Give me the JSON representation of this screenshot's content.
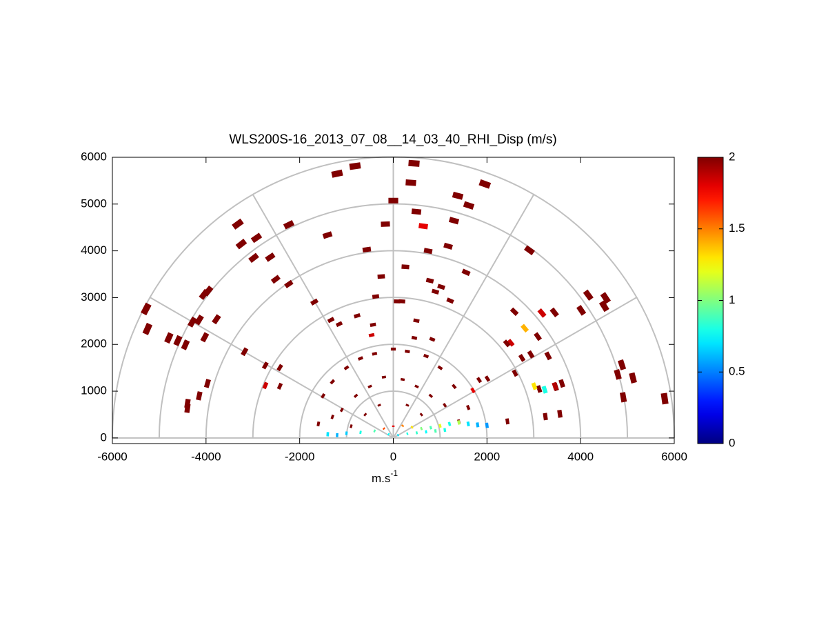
{
  "chart_data": {
    "type": "scatter",
    "title": "WLS200S-16_2013_07_08__14_03_40_RHI_Disp (m/s)",
    "xlabel": "m.s",
    "xlabel_sup": "-1",
    "xlim": [
      -6000,
      6000
    ],
    "ylim": [
      -120,
      6000
    ],
    "xticks": [
      -6000,
      -4000,
      -2000,
      0,
      2000,
      4000,
      6000
    ],
    "yticks": [
      0,
      1000,
      2000,
      3000,
      4000,
      5000,
      6000
    ],
    "colormap": "jet",
    "clim": [
      0,
      2
    ],
    "cticks": [
      0,
      0.5,
      1,
      1.5,
      2
    ],
    "polar_grid": {
      "rings": [
        1000,
        2000,
        3000,
        4000,
        5000,
        6000
      ],
      "spokes": [
        0,
        30,
        60,
        90,
        120,
        150,
        180
      ],
      "color": "#c0c0c0"
    },
    "x": [
      442,
      -817,
      -1200,
      375,
      1955,
      1377,
      1612,
      0,
      -3321,
      -1406,
      -2231,
      640,
      1296,
      493,
      -169,
      -2923,
      -3247,
      1171,
      2908,
      -567,
      743,
      258,
      -2982,
      -2629,
      -4043,
      -3955,
      -258,
      1554,
      781,
      898,
      -2512,
      -2232,
      -5280,
      -5251,
      -4146,
      -3778,
      -4794,
      -4602,
      -4440,
      -4028,
      -4293,
      -376,
      81,
      184,
      1215,
      1024,
      4164,
      4503,
      4533,
      2585,
      3174,
      3440,
      4014,
      2806,
      2511,
      2423,
      3086,
      2938,
      2747,
      3307,
      2010,
      1833,
      2599,
      3115,
      3469,
      3248,
      3557,
      4794,
      4882,
      5118,
      4912,
      5795,
      -2733,
      -2423,
      -3969,
      -4146,
      -4396,
      -4396,
      -3177,
      -2733,
      -2423,
      -1686,
      -1332,
      -1156,
      -434,
      -464,
      -773,
      493,
      832,
      449,
      1701,
      2437,
      3012,
      3233,
      3454,
      3601,
      -1500,
      -1300,
      -1000,
      -700,
      -400,
      0,
      300,
      700,
      1000,
      1300,
      -1100,
      -800,
      -500,
      -200,
      200,
      500,
      800,
      1100,
      -600,
      -300,
      300,
      600,
      -1600,
      -1300,
      1600,
      1400,
      -900,
      -1400,
      -1200,
      -1000,
      -700,
      -400,
      -200,
      0,
      200,
      400,
      600,
      800,
      1000,
      1200,
      1400,
      1600,
      1800,
      2000,
      -100,
      100,
      300,
      500,
      700,
      900,
      1100
    ],
    "y": [
      5870,
      5811,
      5650,
      5457,
      5428,
      5177,
      4971,
      5074,
      4572,
      4336,
      4558,
      4528,
      4646,
      4838,
      4572,
      4277,
      4145,
      4100,
      4012,
      4027,
      3998,
      3658,
      3850,
      3864,
      3068,
      3141,
      3451,
      3540,
      3363,
      3127,
      3392,
      3289,
      2758,
      2330,
      2522,
      2537,
      2139,
      2080,
      1991,
      2153,
      2478,
      3024,
      2920,
      2920,
      2935,
      3230,
      3053,
      2817,
      2994,
      2699,
      2670,
      2684,
      2728,
      2345,
      2035,
      2021,
      2168,
      1785,
      1711,
      1755,
      1268,
      1239,
      1386,
      1047,
      1091,
      457,
      516,
      1357,
      1563,
      1283,
      870,
      841,
      1121,
      1106,
      1165,
      899,
      737,
      634,
      1844,
      1549,
      1504,
      2906,
      2522,
      2434,
      2419,
      2198,
      2611,
      2507,
      2109,
      2139,
      1017,
      354,
      1106,
      1032,
      1106,
      1165,
      900,
      1200,
      1500,
      1700,
      1800,
      1900,
      1850,
      1750,
      1500,
      1100,
      600,
      900,
      1100,
      1300,
      1250,
      1100,
      900,
      700,
      500,
      700,
      700,
      500,
      300,
      450,
      650,
      350,
      250,
      80,
      60,
      100,
      120,
      150,
      200,
      250,
      260,
      230,
      200,
      220,
      260,
      300,
      330,
      300,
      280,
      270,
      80,
      60,
      90,
      110,
      130,
      150,
      170
    ],
    "values": [
      2,
      2,
      2,
      2,
      2,
      2,
      2,
      2,
      2,
      2,
      2,
      1.8,
      2,
      2,
      2,
      2,
      2,
      2,
      2,
      2,
      2,
      2,
      2,
      2,
      2,
      2,
      2,
      2,
      2,
      2,
      2,
      2,
      2,
      2,
      2,
      2,
      2,
      2,
      2,
      2,
      2,
      2,
      2,
      2,
      2,
      2,
      2,
      2,
      2,
      2,
      1.85,
      2,
      2,
      1.4,
      1.85,
      2,
      2,
      2,
      2,
      2,
      2,
      2,
      2,
      2,
      2,
      2,
      2,
      2,
      2,
      2,
      2,
      2,
      1.85,
      2,
      2,
      2,
      2,
      2,
      2,
      2,
      2,
      2,
      2,
      2,
      2,
      1.85,
      2,
      2,
      2,
      2,
      1.8,
      2,
      1.3,
      0.8,
      1.9,
      2,
      2,
      2,
      2,
      2,
      2,
      2,
      2,
      2,
      2,
      2,
      2,
      2,
      2,
      2,
      2,
      2,
      2,
      2,
      2,
      2,
      2,
      2,
      2,
      2,
      2,
      2,
      2,
      0.7,
      0.6,
      0.65,
      0.8,
      0.9,
      1.6,
      1.8,
      1.5,
      1.3,
      1,
      0.9,
      1.2,
      0.8,
      1.1,
      0.7,
      0.6,
      0.55,
      0.75,
      0.7,
      0.8,
      0.85,
      0.75,
      0.9,
      0.8
    ]
  }
}
